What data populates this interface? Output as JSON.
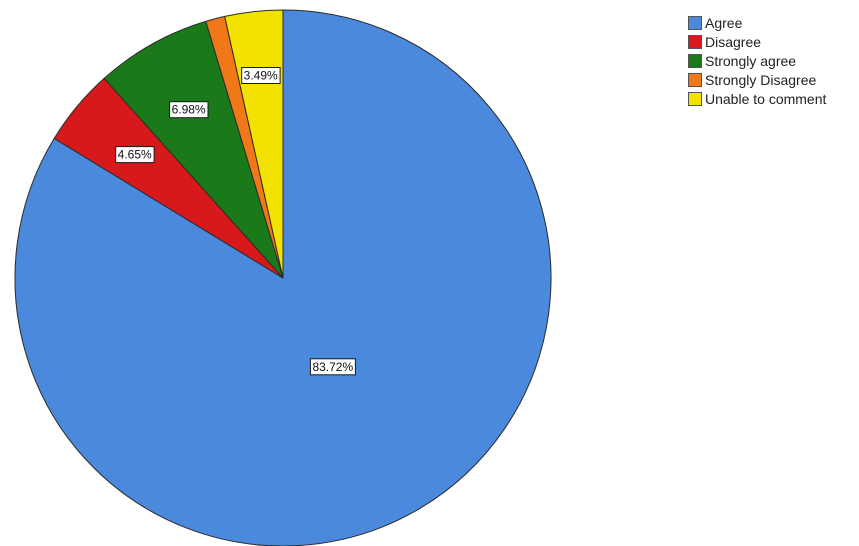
{
  "chart_data": {
    "type": "pie",
    "title": "",
    "start_angle_deg": 0,
    "direction": "clockwise",
    "slices": [
      {
        "name": "Agree",
        "value": 83.72,
        "label": "83.72%",
        "color": "#4a89dc"
      },
      {
        "name": "Disagree",
        "value": 4.65,
        "label": "4.65%",
        "color": "#d7191c"
      },
      {
        "name": "Strongly agree",
        "value": 6.98,
        "label": "6.98%",
        "color": "#1a7a1a"
      },
      {
        "name": "Strongly Disagree",
        "value": 1.16,
        "label": "",
        "color": "#f07818"
      },
      {
        "name": "Unable to comment",
        "value": 3.49,
        "label": "3.49%",
        "color": "#f2e200"
      }
    ],
    "legend": {
      "position": "top-right",
      "items": [
        "Agree",
        "Disagree",
        "Strongly agree",
        "Strongly Disagree",
        "Unable to comment"
      ]
    }
  }
}
